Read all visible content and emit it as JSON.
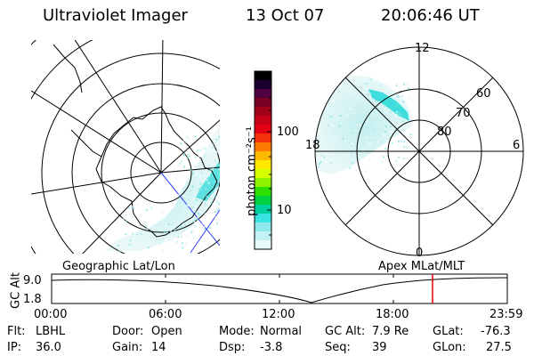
{
  "header": {
    "instrument": "Ultraviolet Imager",
    "date": "13 Oct 07",
    "time": "20:06:46 UT"
  },
  "colorbar": {
    "unit_label": "photon cm⁻²s⁻¹",
    "ticks": [
      "100",
      "10"
    ],
    "scale": "log",
    "colors": [
      "#000000",
      "#1a0030",
      "#500040",
      "#7a0024",
      "#a00018",
      "#c8001a",
      "#e40012",
      "#f6330a",
      "#ff7a00",
      "#ffb800",
      "#ffe800",
      "#d6ff00",
      "#8cf200",
      "#2ee000",
      "#00d040",
      "#00cf9e",
      "#3be2e2",
      "#8ee9ea",
      "#c2f2f2",
      "#e6fafa"
    ]
  },
  "geo_map": {
    "caption": "Geographic Lat/Lon"
  },
  "polar_map": {
    "caption": "Apex MLat/MLT",
    "mlt_labels": [
      "12",
      "18",
      "6",
      "0"
    ],
    "lat_labels": [
      "60",
      "70",
      "80"
    ]
  },
  "altitude_plot": {
    "ylabel": "GC Alt",
    "yticks": [
      "9.0",
      "1.8"
    ],
    "xticks": [
      "00:00",
      "06:00",
      "12:00",
      "18:00",
      "23:59"
    ],
    "marker_time": "20:06",
    "marker_color": "#e00000"
  },
  "info": {
    "filter_label": "Flt:",
    "filter_value": "LBHL",
    "ip_label": "IP:",
    "ip_value": "36.0",
    "door_label": "Door:",
    "door_value": "Open",
    "gain_label": "Gain:",
    "gain_value": "14",
    "mode_label": "Mode:",
    "mode_value": "Normal",
    "dsp_label": "Dsp:",
    "dsp_value": "-3.8",
    "gcalt_label": "GC Alt:",
    "gcalt_value": "7.9 Re",
    "seq_label": "Seq:",
    "seq_value": "39",
    "glat_label": "GLat:",
    "glat_value": "-76.3",
    "glon_label": "GLon:",
    "glon_value": "27.5"
  }
}
